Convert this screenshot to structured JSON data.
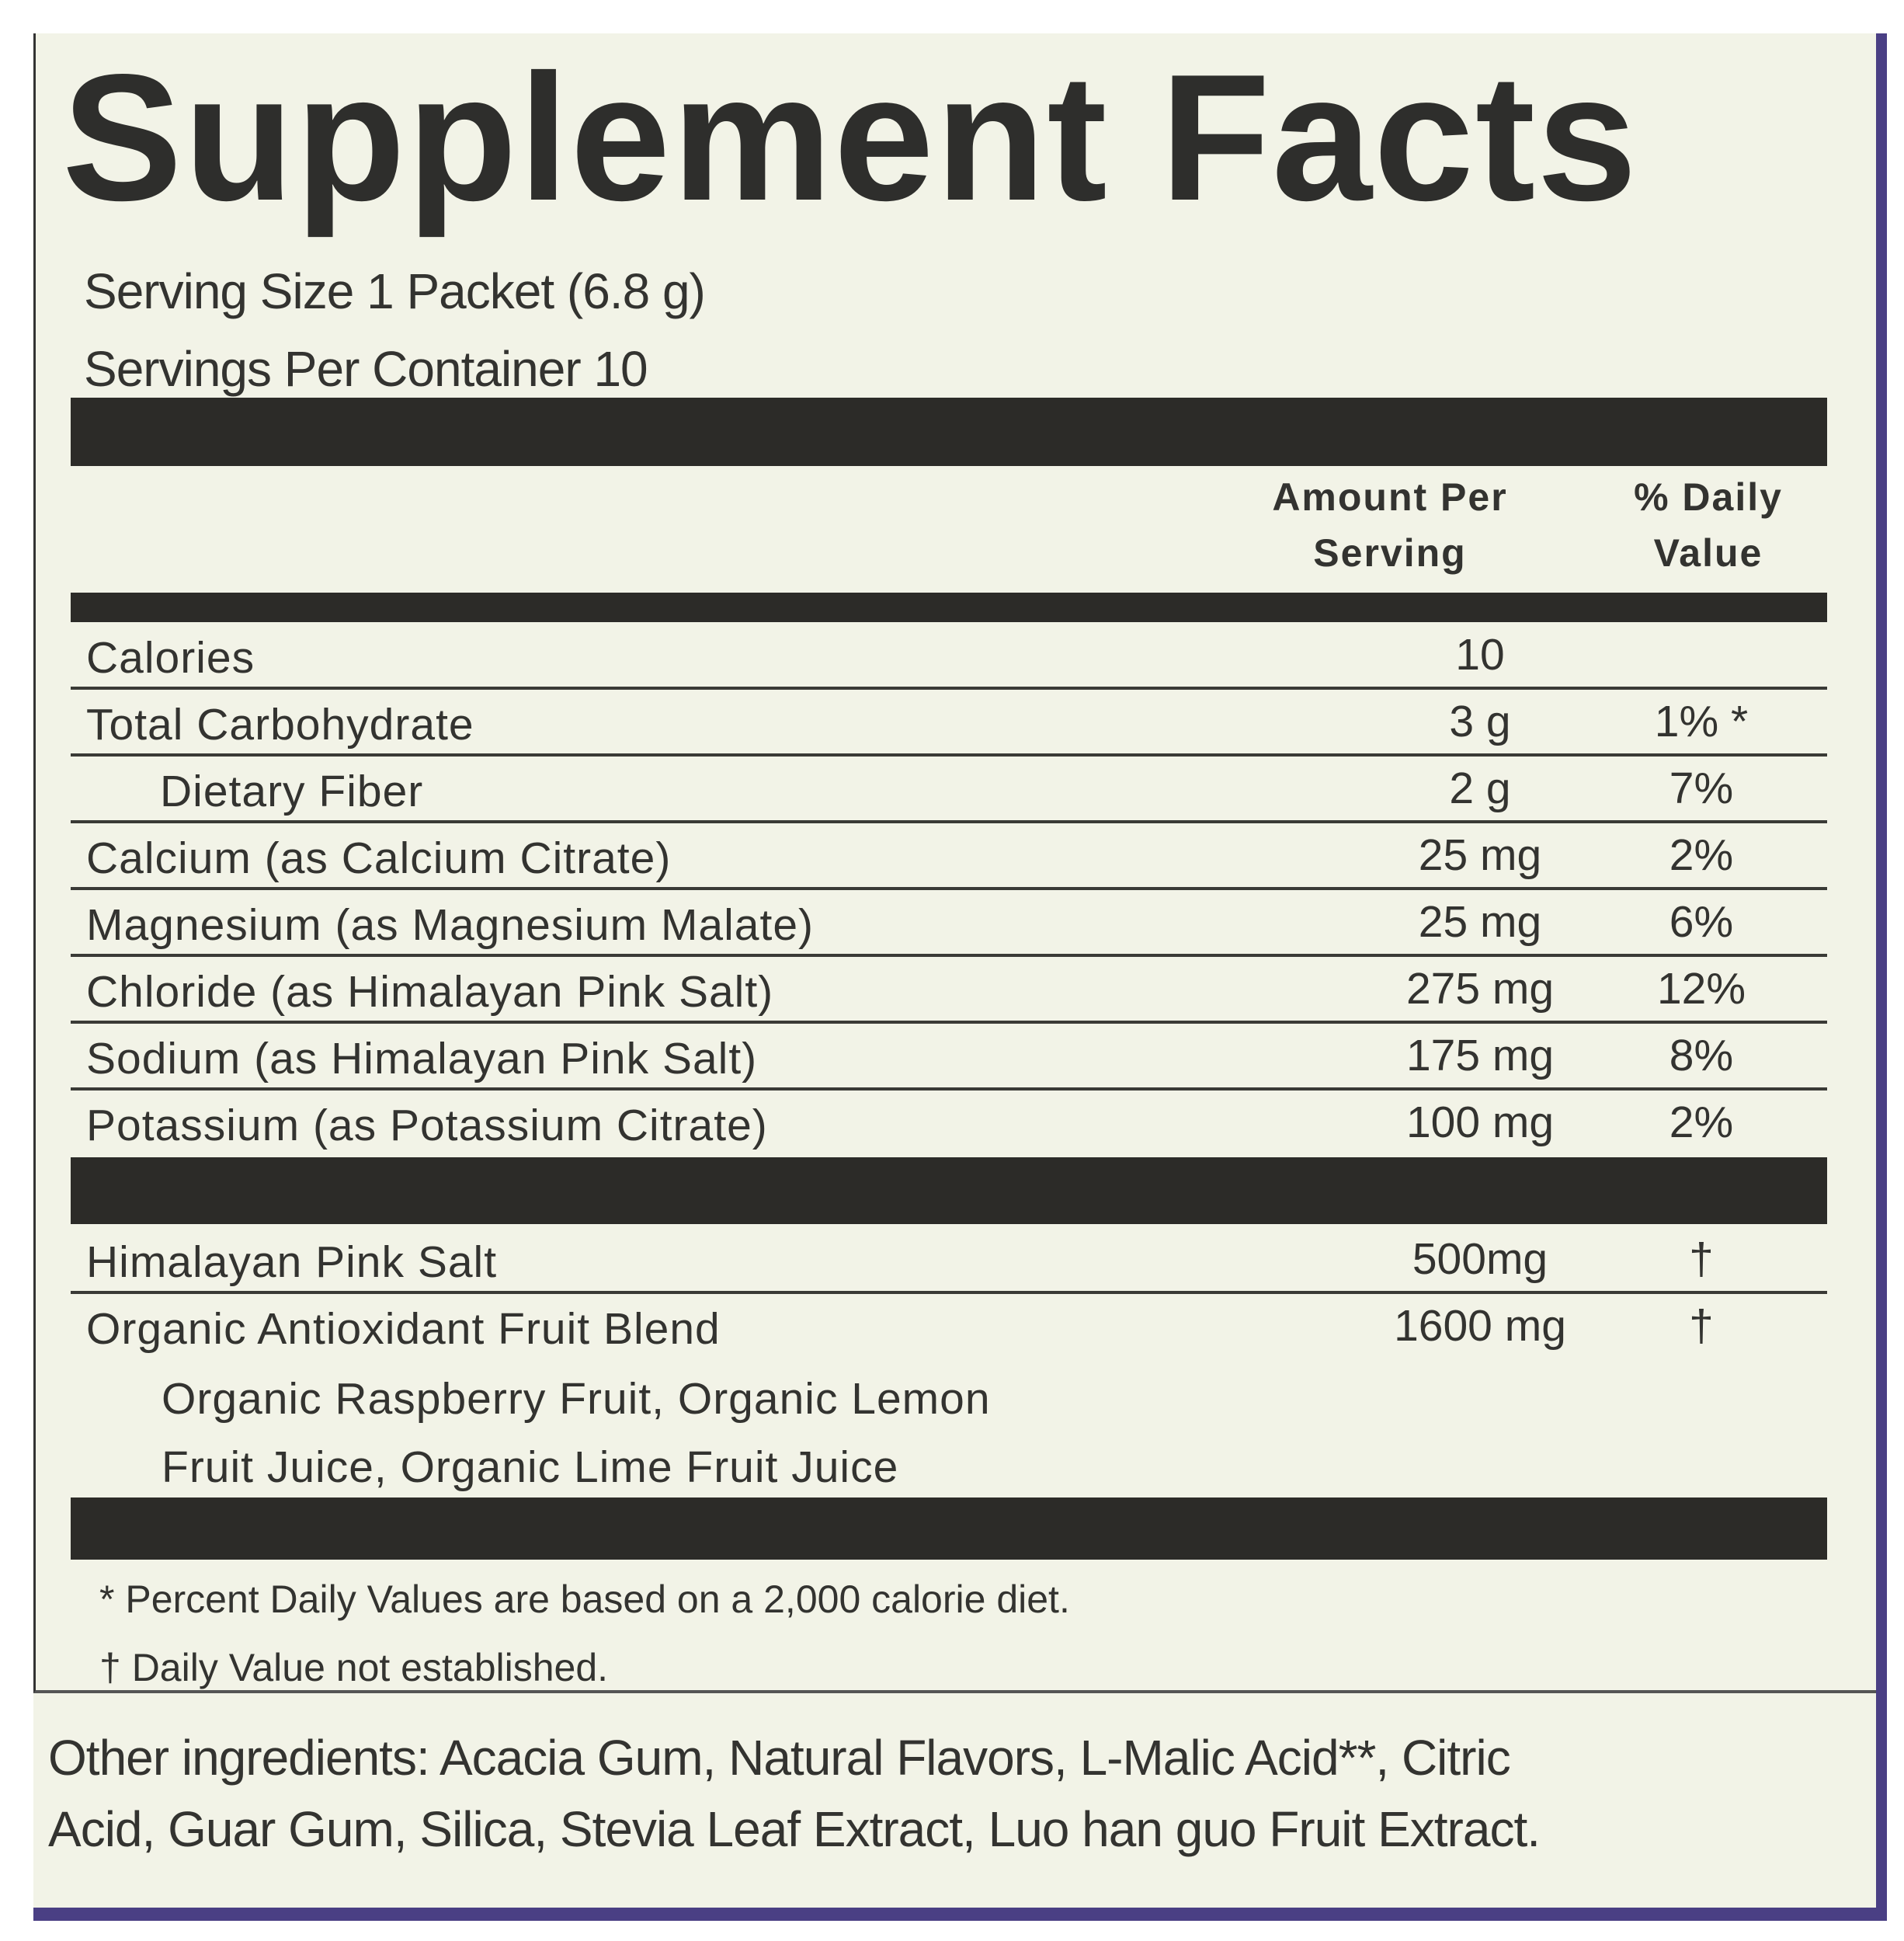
{
  "title": "Supplement Facts",
  "serving_size": "Serving Size 1 Packet (6.8 g)",
  "servings_per_container": "Servings Per Container 10",
  "headers": {
    "amount_line1": "Amount Per",
    "amount_line2": "Serving",
    "dv_line1": "% Daily",
    "dv_line2": "Value"
  },
  "nutrients": [
    {
      "label": "Calories",
      "amount": "10",
      "dv": ""
    },
    {
      "label": "Total Carbohydrate",
      "amount": "3  g",
      "dv": "1% *"
    },
    {
      "label": "Dietary Fiber",
      "amount": "2  g",
      "dv": "7%"
    },
    {
      "label": "Calcium (as Calcium Citrate)",
      "amount": "25 mg",
      "dv": "2%"
    },
    {
      "label": "Magnesium (as Magnesium Malate)",
      "amount": "25 mg",
      "dv": "6%"
    },
    {
      "label": "Chloride (as Himalayan Pink Salt)",
      "amount": "275 mg",
      "dv": "12%"
    },
    {
      "label": "Sodium (as Himalayan Pink Salt)",
      "amount": "175  mg",
      "dv": "8%"
    },
    {
      "label": "Potassium (as Potassium Citrate)",
      "amount": "100 mg",
      "dv": "2%"
    }
  ],
  "other_items": [
    {
      "label": "Himalayan Pink Salt",
      "amount": "500mg",
      "dv": "†"
    },
    {
      "label": "Organic Antioxidant Fruit Blend",
      "amount": "1600 mg",
      "dv": "†"
    }
  ],
  "blend_components": [
    "Organic Raspberry Fruit, Organic Lemon",
    "Fruit Juice, Organic Lime Fruit Juice"
  ],
  "footnotes": [
    "* Percent Daily Values are based on a 2,000 calorie diet.",
    "† Daily Value not established."
  ],
  "other_ingredients": [
    "Other ingredients: Acacia Gum, Natural Flavors, L-Malic Acid**, Citric",
    "Acid, Guar Gum, Silica, Stevia Leaf Extract, Luo han guo Fruit Extract."
  ],
  "colors": {
    "panel": "#f2f3e7",
    "ink": "#2c2b28",
    "border_accent": "#4a3f84"
  }
}
